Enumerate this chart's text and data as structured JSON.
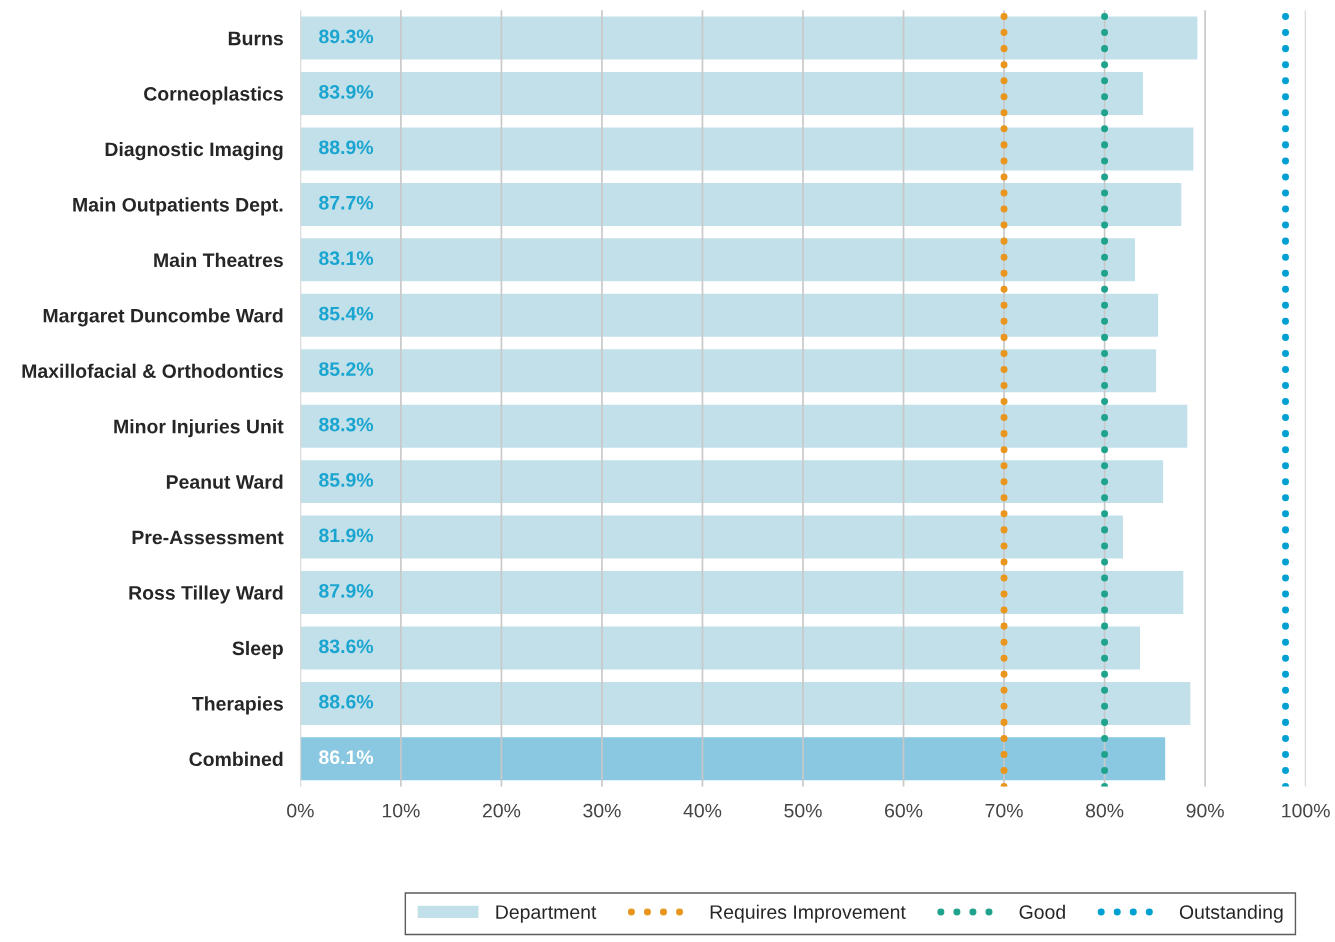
{
  "chart_data": {
    "type": "bar",
    "orientation": "horizontal",
    "categories": [
      "Burns",
      "Corneoplastics",
      "Diagnostic Imaging",
      "Main Outpatients Dept.",
      "Main Theatres",
      "Margaret Duncombe Ward",
      "Maxillofacial & Orthodontics",
      "Minor Injuries Unit",
      "Peanut Ward",
      "Pre-Assessment",
      "Ross Tilley Ward",
      "Sleep",
      "Therapies",
      "Combined"
    ],
    "series": [
      {
        "name": "Department",
        "colors": [
          "#c2e0ea",
          "#c2e0ea",
          "#c2e0ea",
          "#c2e0ea",
          "#c2e0ea",
          "#c2e0ea",
          "#c2e0ea",
          "#c2e0ea",
          "#c2e0ea",
          "#c2e0ea",
          "#c2e0ea",
          "#c2e0ea",
          "#c2e0ea",
          "#8ac7e0"
        ],
        "values": [
          89.3,
          83.9,
          88.9,
          87.7,
          83.1,
          85.4,
          85.2,
          88.3,
          85.9,
          81.9,
          87.9,
          83.6,
          88.6,
          86.1
        ],
        "value_labels": [
          "89.3%",
          "83.9%",
          "88.9%",
          "87.7%",
          "83.1%",
          "85.4%",
          "85.2%",
          "88.3%",
          "85.9%",
          "81.9%",
          "87.9%",
          "83.6%",
          "88.6%",
          "86.1%"
        ]
      }
    ],
    "xlim": [
      0,
      100
    ],
    "xticks": [
      {
        "value": 0,
        "label": "0%"
      },
      {
        "value": 10,
        "label": "10%"
      },
      {
        "value": 20,
        "label": "20%"
      },
      {
        "value": 30,
        "label": "30%"
      },
      {
        "value": 40,
        "label": "40%"
      },
      {
        "value": 50,
        "label": "50%"
      },
      {
        "value": 60,
        "label": "60%"
      },
      {
        "value": 70,
        "label": "70%"
      },
      {
        "value": 80,
        "label": "80%"
      },
      {
        "value": 90,
        "label": "90%"
      },
      {
        "value": 100,
        "label": "100%"
      }
    ],
    "ref_lines": [
      {
        "axis": "x",
        "value": 70,
        "label": "Requires Improvement",
        "color": "#e8961e",
        "line_style": "dotted"
      },
      {
        "axis": "x",
        "value": 80,
        "label": "Good",
        "color": "#1fa38c",
        "line_style": "dotted"
      },
      {
        "axis": "x",
        "value": 98,
        "label": "Outstanding",
        "color": "#00a0d2",
        "line_style": "dotted"
      }
    ],
    "grid": "x",
    "legend": "bottom"
  }
}
